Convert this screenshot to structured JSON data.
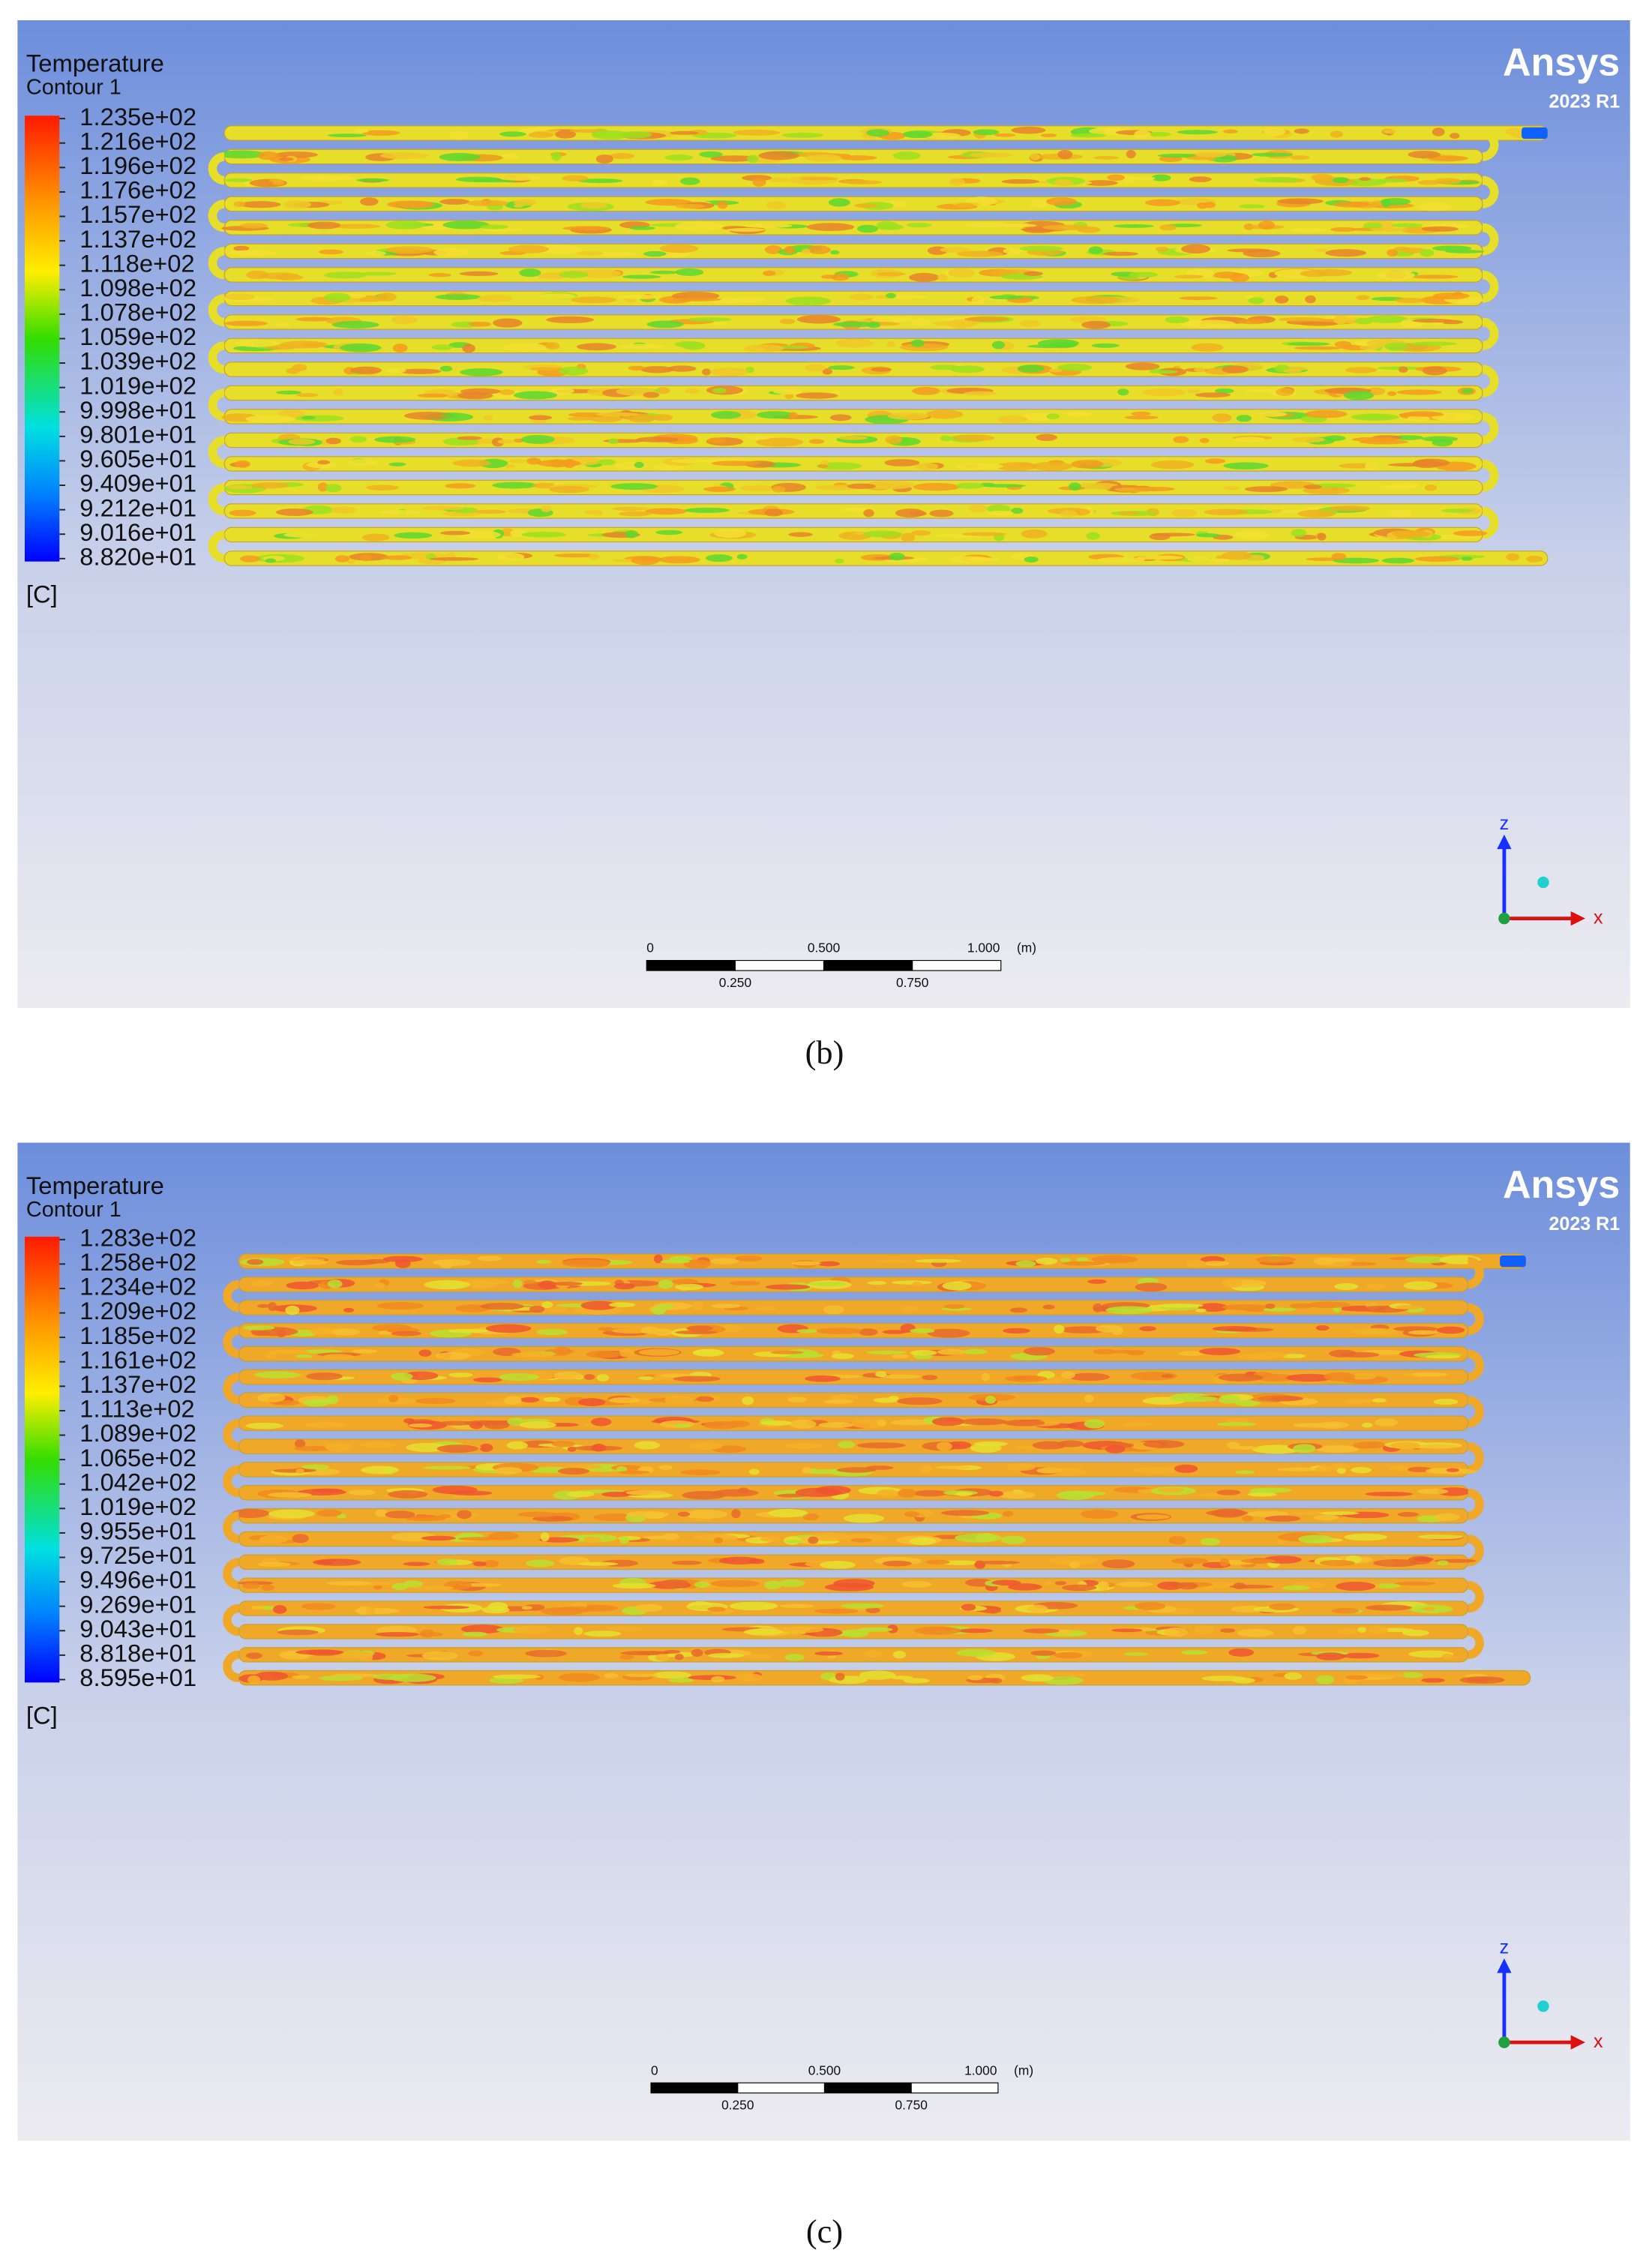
{
  "panels": [
    {
      "caption": "(b)",
      "legend": {
        "title": "Temperature",
        "subtitle": "Contour 1",
        "labels": [
          "1.235e+02",
          "1.216e+02",
          "1.196e+02",
          "1.176e+02",
          "1.157e+02",
          "1.137e+02",
          "1.118e+02",
          "1.098e+02",
          "1.078e+02",
          "1.059e+02",
          "1.039e+02",
          "1.019e+02",
          "9.998e+01",
          "9.801e+01",
          "9.605e+01",
          "9.409e+01",
          "9.212e+01",
          "9.016e+01",
          "8.820e+01"
        ],
        "unit": "[C]"
      },
      "logo": {
        "name": "Ansys",
        "version": "2023 R1"
      },
      "scale_bar": {
        "top_labels": [
          "0",
          "0.500",
          "1.000"
        ],
        "unit": "(m)",
        "bottom_labels": [
          "0.250",
          "0.750"
        ]
      },
      "axes": {
        "vertical": "z",
        "horizontal": "x"
      }
    },
    {
      "caption": "(c)",
      "legend": {
        "title": "Temperature",
        "subtitle": "Contour 1",
        "labels": [
          "1.283e+02",
          "1.258e+02",
          "1.234e+02",
          "1.209e+02",
          "1.185e+02",
          "1.161e+02",
          "1.137e+02",
          "1.113e+02",
          "1.089e+02",
          "1.065e+02",
          "1.042e+02",
          "1.019e+02",
          "9.955e+01",
          "9.725e+01",
          "9.496e+01",
          "9.269e+01",
          "9.043e+01",
          "8.818e+01",
          "8.595e+01"
        ],
        "unit": "[C]"
      },
      "logo": {
        "name": "Ansys",
        "version": "2023 R1"
      },
      "scale_bar": {
        "top_labels": [
          "0",
          "0.500",
          "1.000"
        ],
        "unit": "(m)",
        "bottom_labels": [
          "0.250",
          "0.750"
        ]
      },
      "axes": {
        "vertical": "z",
        "horizontal": "x"
      }
    }
  ]
}
